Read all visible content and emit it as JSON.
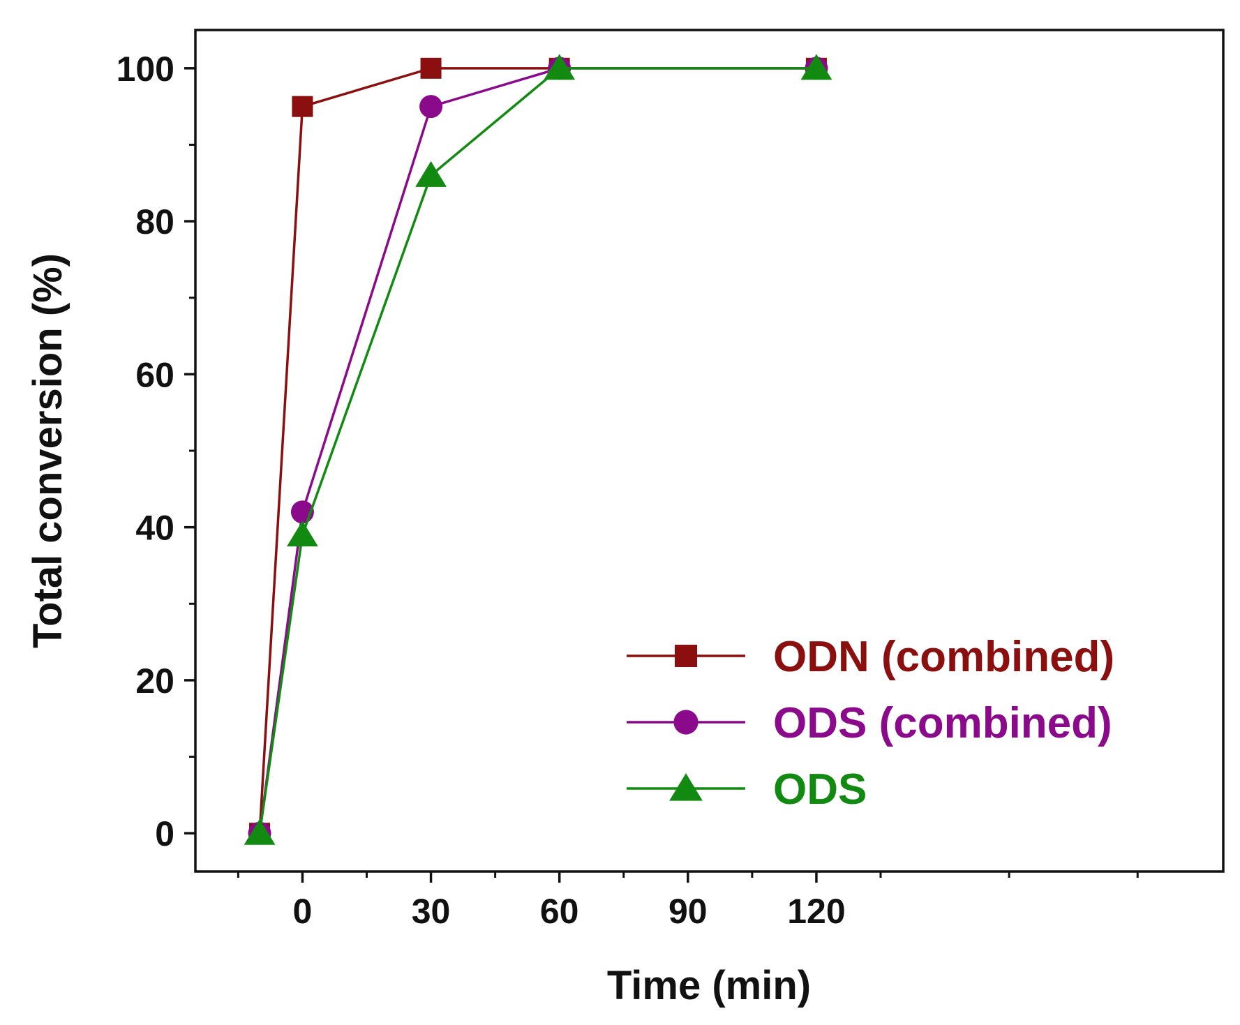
{
  "chart_data": {
    "type": "line",
    "xlabel": "Time (min)",
    "ylabel": "Total conversion (%)",
    "xlim": [
      -25,
      215
    ],
    "ylim": [
      -5,
      105
    ],
    "x_major_ticks": [
      0,
      30,
      60,
      90,
      120
    ],
    "x_tick_labels": [
      "0",
      "30",
      "60",
      "90",
      "120"
    ],
    "y_major_ticks": [
      0,
      20,
      40,
      60,
      80,
      100
    ],
    "y_tick_labels": [
      "0",
      "20",
      "40",
      "60",
      "80",
      "100"
    ],
    "legend_position": "bottom-right",
    "series": [
      {
        "name": "ODN (combined)",
        "color": "#8b0f0f",
        "marker": "square",
        "x": [
          -10,
          0,
          30,
          60,
          120
        ],
        "values": [
          0,
          95,
          100,
          100,
          100
        ]
      },
      {
        "name": "ODS (combined)",
        "color": "#8b0a8b",
        "marker": "circle",
        "x": [
          -10,
          0,
          30,
          60,
          120
        ],
        "values": [
          0,
          42,
          95,
          100,
          100
        ]
      },
      {
        "name": "ODS",
        "color": "#128a12",
        "marker": "triangle",
        "x": [
          -10,
          0,
          30,
          60,
          120
        ],
        "values": [
          0,
          39,
          86,
          100,
          100
        ]
      }
    ]
  }
}
